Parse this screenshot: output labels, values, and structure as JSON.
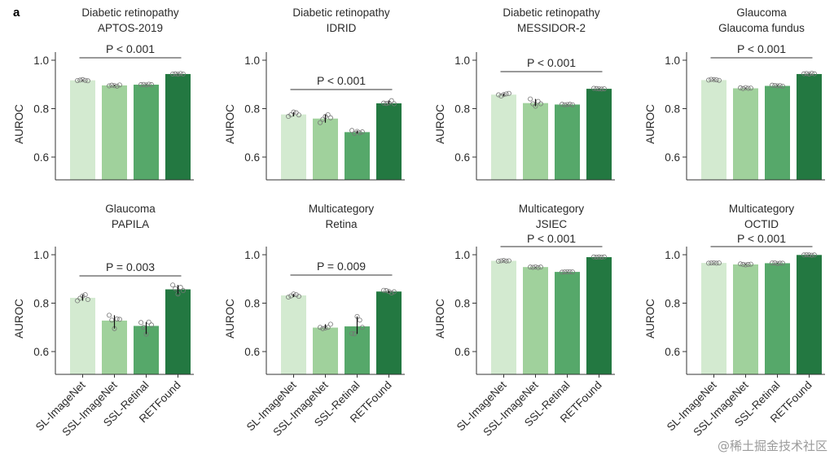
{
  "figure": {
    "panel_label": "a",
    "watermark": "@稀土掘金技术社区"
  },
  "colors": {
    "SL-ImageNet": "#d3ead0",
    "SSL-ImageNet": "#a0d19c",
    "SSL-Retinal": "#56a86a",
    "RETFound": "#237841"
  },
  "chart_data": [
    {
      "type": "bar",
      "title": [
        "Diabetic retinopathy",
        "APTOS-2019"
      ],
      "categories": [
        "SL-ImageNet",
        "SSL-ImageNet",
        "SSL-Retinal",
        "RETFound"
      ],
      "values": [
        0.917,
        0.896,
        0.899,
        0.943
      ],
      "points": [
        [
          0.916,
          0.918,
          0.92,
          0.917,
          0.915
        ],
        [
          0.894,
          0.897,
          0.895,
          0.893,
          0.898
        ],
        [
          0.899,
          0.9,
          0.898,
          0.901,
          0.899
        ],
        [
          0.943,
          0.944,
          0.942,
          0.945,
          0.943
        ]
      ],
      "ylabel": "AUROC",
      "yticks": [
        0.6,
        0.8,
        1.0
      ],
      "ylim": [
        0.5,
        1.0
      ],
      "p_value": "P < 0.001",
      "p_above_title": false,
      "xlabels_shown": false
    },
    {
      "type": "bar",
      "title": [
        "Diabetic retinopathy",
        "IDRID"
      ],
      "categories": [
        "SL-ImageNet",
        "SSL-ImageNet",
        "SSL-Retinal",
        "RETFound"
      ],
      "values": [
        0.776,
        0.759,
        0.703,
        0.822
      ],
      "points": [
        [
          0.768,
          0.775,
          0.786,
          0.783,
          0.774
        ],
        [
          0.742,
          0.756,
          0.768,
          0.775,
          0.762
        ],
        [
          0.71,
          0.698,
          0.706,
          0.7,
          0.704
        ],
        [
          0.823,
          0.821,
          0.824,
          0.833,
          0.82
        ]
      ],
      "ylabel": "AUROC",
      "yticks": [
        0.6,
        0.8,
        1.0
      ],
      "ylim": [
        0.5,
        1.0
      ],
      "p_value": "P < 0.001",
      "p_above_title": false,
      "xlabels_shown": false
    },
    {
      "type": "bar",
      "title": [
        "Diabetic retinopathy",
        "MESSIDOR-2"
      ],
      "categories": [
        "SL-ImageNet",
        "SSL-ImageNet",
        "SSL-Retinal",
        "RETFound"
      ],
      "values": [
        0.858,
        0.823,
        0.817,
        0.882
      ],
      "points": [
        [
          0.857,
          0.852,
          0.858,
          0.861,
          0.863
        ],
        [
          0.84,
          0.82,
          0.81,
          0.83,
          0.82
        ],
        [
          0.818,
          0.816,
          0.817,
          0.818,
          0.816
        ],
        [
          0.884,
          0.883,
          0.882,
          0.881,
          0.882
        ]
      ],
      "ylabel": "AUROC",
      "yticks": [
        0.6,
        0.8,
        1.0
      ],
      "ylim": [
        0.5,
        1.0
      ],
      "p_value": "P < 0.001",
      "p_above_title": false,
      "xlabels_shown": false
    },
    {
      "type": "bar",
      "title": [
        "Glaucoma",
        "Glaucoma fundus"
      ],
      "categories": [
        "SL-ImageNet",
        "SSL-ImageNet",
        "SSL-Retinal",
        "RETFound"
      ],
      "values": [
        0.918,
        0.884,
        0.894,
        0.943
      ],
      "points": [
        [
          0.918,
          0.921,
          0.92,
          0.919,
          0.917
        ],
        [
          0.886,
          0.883,
          0.887,
          0.884,
          0.885
        ],
        [
          0.897,
          0.896,
          0.894,
          0.895,
          0.893
        ],
        [
          0.944,
          0.945,
          0.943,
          0.946,
          0.944
        ]
      ],
      "ylabel": "AUROC",
      "yticks": [
        0.6,
        0.8,
        1.0
      ],
      "ylim": [
        0.5,
        1.0
      ],
      "p_value": "P < 0.001",
      "p_above_title": false,
      "xlabels_shown": false
    },
    {
      "type": "bar",
      "title": [
        "Glaucoma",
        "PAPILA"
      ],
      "categories": [
        "SL-ImageNet",
        "SSL-ImageNet",
        "SSL-Retinal",
        "RETFound"
      ],
      "values": [
        0.822,
        0.728,
        0.706,
        0.857
      ],
      "points": [
        [
          0.81,
          0.82,
          0.83,
          0.835,
          0.815
        ],
        [
          0.75,
          0.73,
          0.695,
          0.735,
          0.733
        ],
        [
          0.72,
          0.7,
          0.672,
          0.722,
          0.71
        ],
        [
          0.875,
          0.86,
          0.838,
          0.865,
          0.852
        ]
      ],
      "ylabel": "AUROC",
      "yticks": [
        0.6,
        0.8,
        1.0
      ],
      "ylim": [
        0.5,
        1.0
      ],
      "p_value": "P = 0.003",
      "p_above_title": false,
      "xlabels_shown": true
    },
    {
      "type": "bar",
      "title": [
        "Multicategory",
        "Retina"
      ],
      "categories": [
        "SL-ImageNet",
        "SSL-ImageNet",
        "SSL-Retinal",
        "RETFound"
      ],
      "values": [
        0.832,
        0.699,
        0.704,
        0.848
      ],
      "points": [
        [
          0.825,
          0.83,
          0.838,
          0.835,
          0.828
        ],
        [
          0.7,
          0.695,
          0.698,
          0.7,
          0.713
        ],
        [
          0.675,
          0.673,
          0.745,
          0.73,
          0.7
        ],
        [
          0.853,
          0.852,
          0.848,
          0.842,
          0.847
        ]
      ],
      "ylabel": "AUROC",
      "yticks": [
        0.6,
        0.8,
        1.0
      ],
      "ylim": [
        0.5,
        1.0
      ],
      "p_value": "P = 0.009",
      "p_above_title": false,
      "xlabels_shown": true
    },
    {
      "type": "bar",
      "title": [
        "Multicategory",
        "JSIEC"
      ],
      "categories": [
        "SL-ImageNet",
        "SSL-ImageNet",
        "SSL-Retinal",
        "RETFound"
      ],
      "values": [
        0.975,
        0.949,
        0.929,
        0.99
      ],
      "points": [
        [
          0.973,
          0.975,
          0.976,
          0.974,
          0.975
        ],
        [
          0.949,
          0.948,
          0.95,
          0.947,
          0.949
        ],
        [
          0.928,
          0.929,
          0.93,
          0.93,
          0.929
        ],
        [
          0.991,
          0.99,
          0.991,
          0.99,
          0.991
        ]
      ],
      "ylabel": "AUROC",
      "yticks": [
        0.6,
        0.8,
        1.0
      ],
      "ylim": [
        0.5,
        1.0
      ],
      "p_value": "P < 0.001",
      "p_above_title": true,
      "xlabels_shown": true
    },
    {
      "type": "bar",
      "title": [
        "Multicategory",
        "OCTID"
      ],
      "categories": [
        "SL-ImageNet",
        "SSL-ImageNet",
        "SSL-Retinal",
        "RETFound"
      ],
      "values": [
        0.966,
        0.96,
        0.965,
        0.999
      ],
      "points": [
        [
          0.965,
          0.966,
          0.967,
          0.965,
          0.966
        ],
        [
          0.962,
          0.96,
          0.958,
          0.96,
          0.961
        ],
        [
          0.966,
          0.967,
          0.964,
          0.965,
          0.965
        ],
        [
          0.999,
          1.0,
          0.999,
          0.998,
          0.999
        ]
      ],
      "ylabel": "AUROC",
      "yticks": [
        0.6,
        0.8,
        1.0
      ],
      "ylim": [
        0.5,
        1.0
      ],
      "p_value": "P < 0.001",
      "p_above_title": true,
      "xlabels_shown": true
    }
  ]
}
